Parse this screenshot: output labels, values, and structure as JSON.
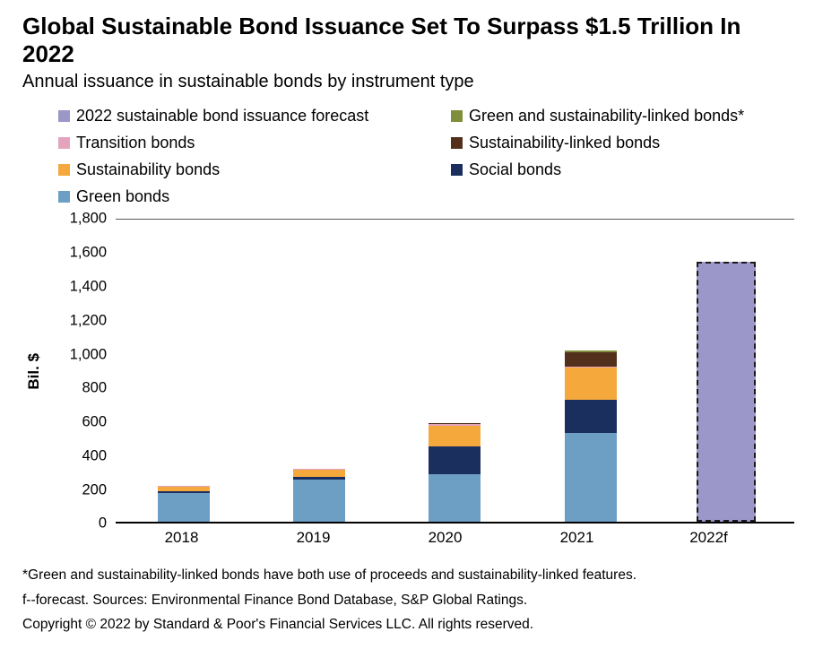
{
  "header": {
    "title": "Global Sustainable Bond Issuance Set To Surpass $1.5 Trillion In 2022",
    "subtitle": "Annual issuance in sustainable bonds by instrument type"
  },
  "colors": {
    "forecast": "#9B97C9",
    "green_sl": "#7F8E3B",
    "transition": "#E5A4BE",
    "slb": "#52301C",
    "sustainability": "#F5A83C",
    "social": "#1B2F5E",
    "green": "#6D9EC4"
  },
  "legend": {
    "items": [
      {
        "label": "2022 sustainable bond issuance forecast",
        "color": "#9B97C9"
      },
      {
        "label": "Green and sustainability-linked bonds*",
        "color": "#7F8E3B"
      },
      {
        "label": "Transition bonds",
        "color": "#E5A4BE"
      },
      {
        "label": "Sustainability-linked bonds",
        "color": "#52301C"
      },
      {
        "label": "Sustainability bonds",
        "color": "#F5A83C"
      },
      {
        "label": "Social bonds",
        "color": "#1B2F5E"
      },
      {
        "label": "Green bonds",
        "color": "#6D9EC4"
      }
    ]
  },
  "chart_data": {
    "type": "bar",
    "stacked": true,
    "title": "Global Sustainable Bond Issuance Set To Surpass $1.5 Trillion In 2022",
    "subtitle": "Annual issuance in sustainable bonds by instrument type",
    "ylabel": "Bil. $",
    "xlabel": "",
    "ylim": [
      0,
      1800
    ],
    "ytick_step": 200,
    "grid": false,
    "legend_position": "top",
    "categories": [
      "2018",
      "2019",
      "2020",
      "2021",
      "2022f"
    ],
    "series": [
      {
        "name": "Green bonds",
        "color": "#6D9EC4",
        "values": [
          172,
          255,
          285,
          530,
          0
        ]
      },
      {
        "name": "Social bonds",
        "color": "#1B2F5E",
        "values": [
          12,
          15,
          165,
          200,
          0
        ]
      },
      {
        "name": "Sustainability bonds",
        "color": "#F5A83C",
        "values": [
          28,
          40,
          122,
          190,
          0
        ]
      },
      {
        "name": "Transition bonds",
        "color": "#E5A4BE",
        "values": [
          3,
          10,
          10,
          5,
          0
        ]
      },
      {
        "name": "Sustainability-linked bonds",
        "color": "#52301C",
        "values": [
          0,
          0,
          6,
          85,
          0
        ]
      },
      {
        "name": "Green and sustainability-linked bonds*",
        "color": "#7F8E3B",
        "values": [
          0,
          0,
          0,
          15,
          0
        ]
      },
      {
        "name": "2022 sustainable bond issuance forecast",
        "color": "#9B97C9",
        "dashed_border": true,
        "values": [
          0,
          0,
          0,
          0,
          1550
        ]
      }
    ]
  },
  "footnotes": [
    "*Green and sustainability-linked bonds have both use of proceeds and sustainability-linked features.",
    "f--forecast. Sources: Environmental Finance Bond Database, S&P Global Ratings.",
    "Copyright © 2022 by Standard & Poor's Financial Services LLC. All rights reserved."
  ]
}
